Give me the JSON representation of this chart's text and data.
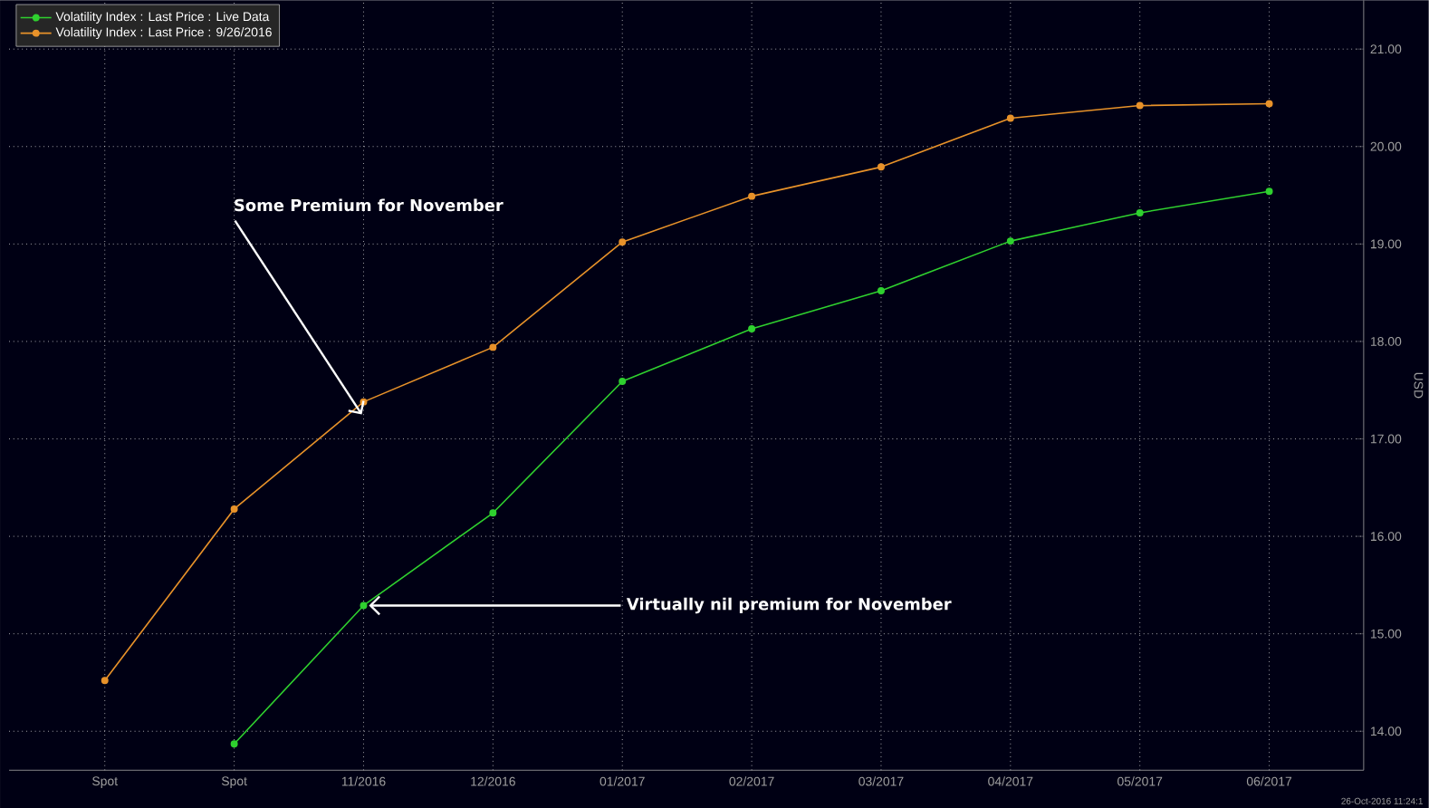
{
  "chart_data": {
    "type": "line",
    "categories": [
      "Spot",
      "Spot",
      "11/2016",
      "12/2016",
      "01/2017",
      "02/2017",
      "03/2017",
      "04/2017",
      "05/2017",
      "06/2017"
    ],
    "series": [
      {
        "name": "Volatility Index : Last Price : Live Data",
        "color": "#2fd12f",
        "values": [
          null,
          13.87,
          15.29,
          16.24,
          17.59,
          18.13,
          18.52,
          19.03,
          19.32,
          19.54
        ]
      },
      {
        "name": "Volatility Index : Last Price : 9/26/2016",
        "color": "#e8922a",
        "values": [
          14.52,
          16.28,
          17.38,
          17.94,
          19.02,
          19.49,
          19.79,
          20.29,
          20.42,
          20.44
        ]
      }
    ],
    "ylabel": "USD",
    "ylim": [
      13.6,
      21.5
    ],
    "yticks": [
      {
        "value": 14,
        "label": "14.00"
      },
      {
        "value": 15,
        "label": "15.00"
      },
      {
        "value": 16,
        "label": "16.00"
      },
      {
        "value": 17,
        "label": "17.00"
      },
      {
        "value": 18,
        "label": "18.00"
      },
      {
        "value": 19,
        "label": "19.00"
      },
      {
        "value": 20,
        "label": "20.00"
      },
      {
        "value": 21,
        "label": "21.00"
      }
    ],
    "grid": true,
    "legend": "top left",
    "marker": "circle",
    "line_style": "solid",
    "annotations": [
      {
        "text": "Some Premium for November",
        "x": "11/2016",
        "y": 17.38
      },
      {
        "text": "Virtually nil premium for November",
        "x": "11/2016",
        "y": 15.29
      },
      "26-Oct-2016 11:24:1"
    ]
  }
}
